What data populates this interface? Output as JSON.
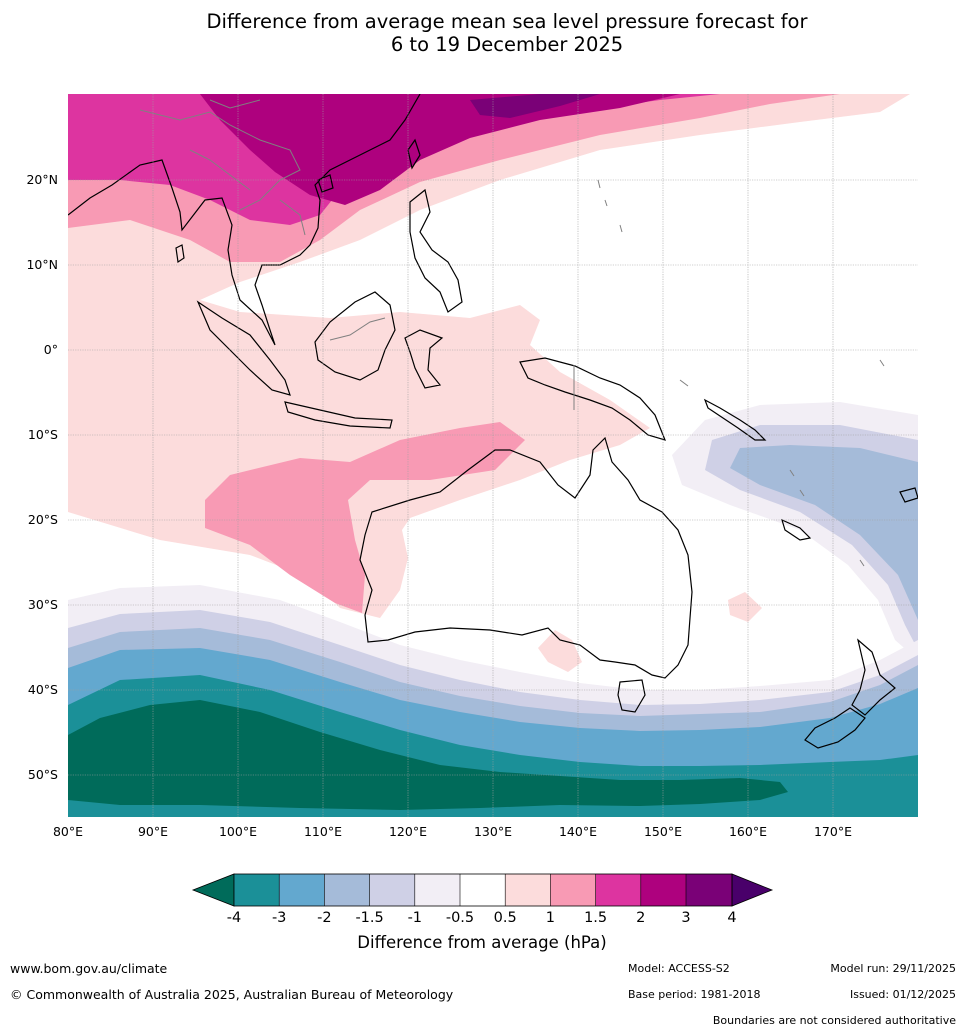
{
  "title": {
    "line1": "Difference from average mean sea level pressure forecast for",
    "line2": "6 to 19 December 2025"
  },
  "axes": {
    "lat_labels": [
      "20°N",
      "10°N",
      "0°",
      "10°S",
      "20°S",
      "30°S",
      "40°S",
      "50°S"
    ],
    "lon_labels": [
      "80°E",
      "90°E",
      "100°E",
      "110°E",
      "120°E",
      "130°E",
      "140°E",
      "150°E",
      "160°E",
      "170°E"
    ]
  },
  "colorbar": {
    "ticks": [
      "-4",
      "-3",
      "-2",
      "-1.5",
      "-1",
      "-0.5",
      "0.5",
      "1",
      "1.5",
      "2",
      "3",
      "4"
    ],
    "colors": [
      "#006b5a",
      "#1b9098",
      "#63a8cf",
      "#a5bbd9",
      "#cfd0e6",
      "#f2eef5",
      "#ffffff",
      "#fcdcdc",
      "#f89ab4",
      "#dd34a0",
      "#ae017e",
      "#7a0177",
      "#49006a"
    ],
    "label": "Difference from average (hPa)"
  },
  "footer": {
    "website": "www.bom.gov.au/climate",
    "copyright": "© Commonwealth of Australia 2025, Australian Bureau of Meteorology",
    "model": "Model: ACCESS-S2",
    "base_period": "Base period: 1981-2018",
    "model_run": "Model run: 29/11/2025",
    "issued": "Issued: 01/12/2025",
    "disclaimer": "Boundaries are not considered authoritative"
  }
}
